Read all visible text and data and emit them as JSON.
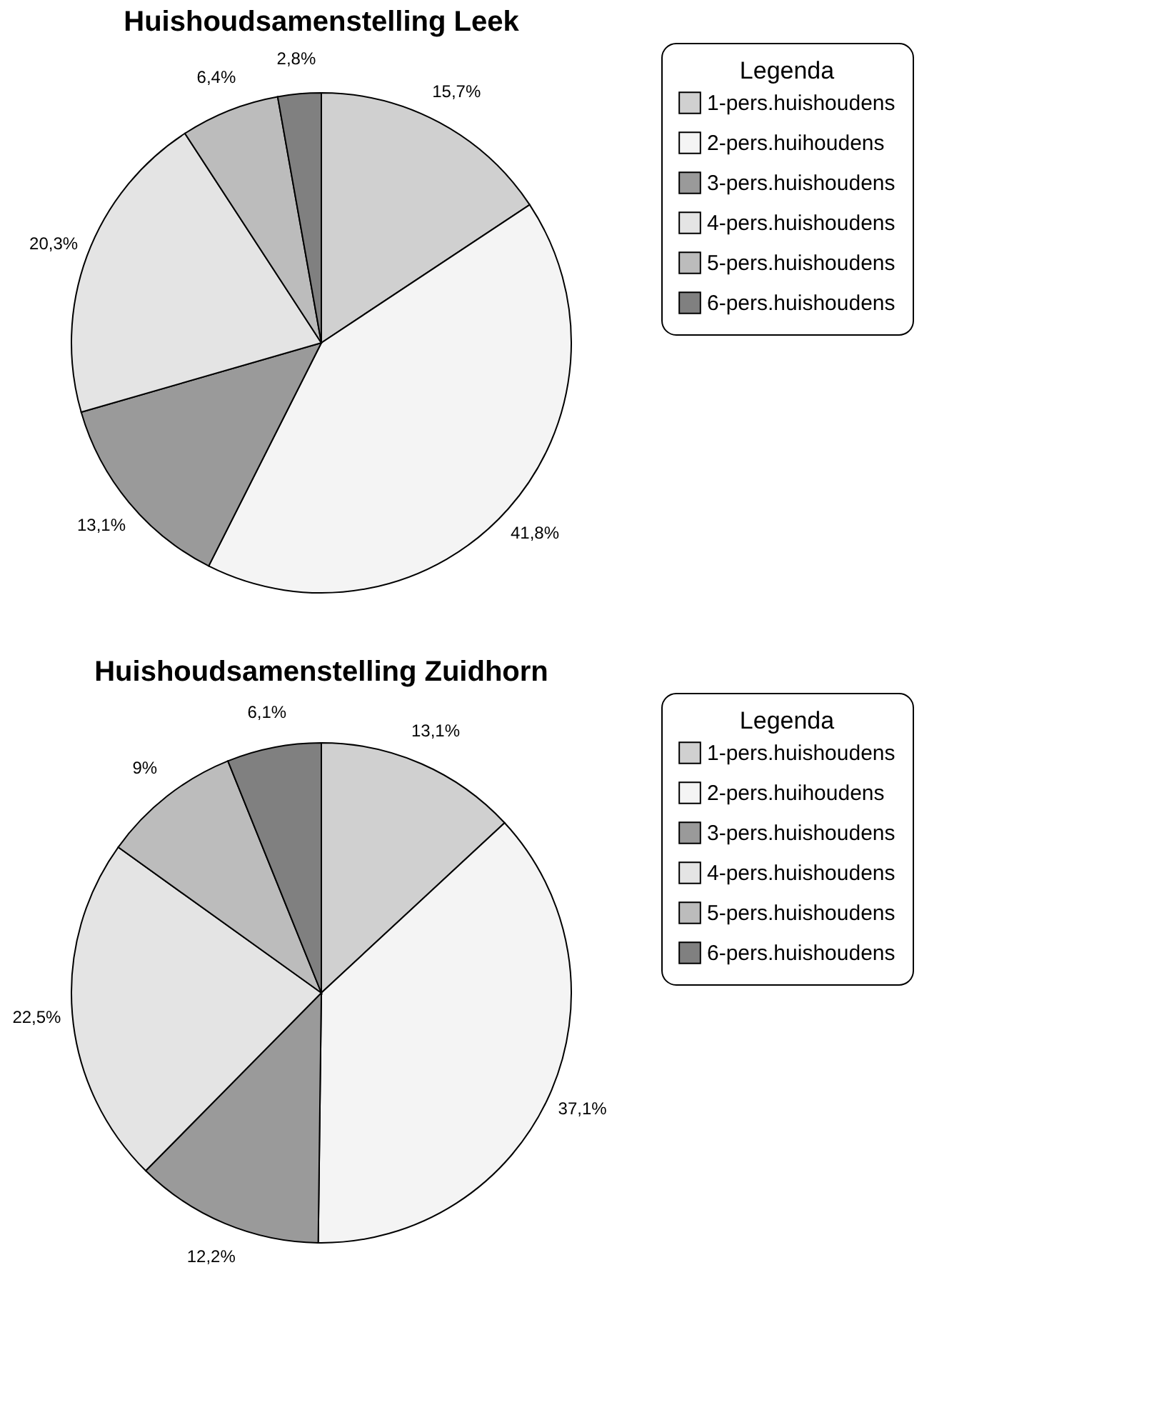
{
  "chart_data": [
    {
      "type": "pie",
      "title": "Huishoudsamenstelling Leek",
      "legend_title": "Legenda",
      "legend": "right",
      "categories": [
        "1-pers.huishoudens",
        "2-pers.huihoudens",
        "3-pers.huishoudens",
        "4-pers.huishoudens",
        "5-pers.huishoudens",
        "6-pers.huishoudens"
      ],
      "values": [
        15.7,
        41.8,
        13.1,
        20.3,
        6.4,
        2.8
      ],
      "value_labels": [
        "15,7%",
        "41,8%",
        "13,1%",
        "20,3%",
        "6,4%",
        "2,8%"
      ],
      "colors": [
        "#d0d0d0",
        "#f4f4f4",
        "#9a9a9a",
        "#e4e4e4",
        "#bcbcbc",
        "#808080"
      ]
    },
    {
      "type": "pie",
      "title": "Huishoudsamenstelling Zuidhorn",
      "legend_title": "Legenda",
      "legend": "right",
      "categories": [
        "1-pers.huishoudens",
        "2-pers.huihoudens",
        "3-pers.huishoudens",
        "4-pers.huishoudens",
        "5-pers.huishoudens",
        "6-pers.huishoudens"
      ],
      "values": [
        13.1,
        37.1,
        12.2,
        22.5,
        9,
        6.1
      ],
      "value_labels": [
        "13,1%",
        "37,1%",
        "12,2%",
        "22,5%",
        "9%",
        "6,1%"
      ],
      "colors": [
        "#d0d0d0",
        "#f4f4f4",
        "#9a9a9a",
        "#e4e4e4",
        "#bcbcbc",
        "#808080"
      ]
    }
  ]
}
